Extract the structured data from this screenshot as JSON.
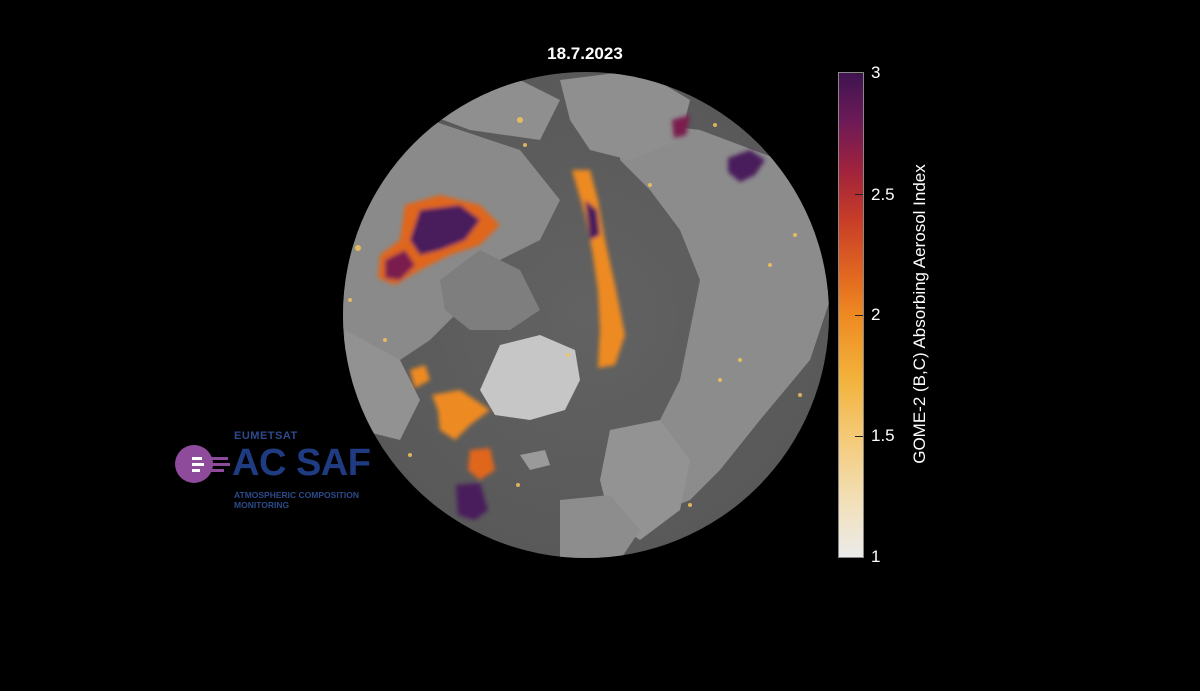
{
  "map": {
    "date_title": "18.7.2023",
    "colors": {
      "background": "#000000",
      "land": "#8c8c8c",
      "ocean": "#5f5f5f",
      "greenland_ice": "#c8c8c8",
      "aerosol_low": "#f2c35a",
      "aerosol_mid": "#e0661f",
      "aerosol_high": "#4a1a5c"
    },
    "colorbar": {
      "label": "GOME-2 (B,C) Absorbing Aerosol Index",
      "min": 1,
      "max": 3,
      "ticks": [
        "3",
        "2.5",
        "2",
        "1.5",
        "1"
      ],
      "colormap": "inferno (reversed, light to dark purple)"
    },
    "logo": {
      "organization": "EUMETSAT",
      "name": "AC SAF",
      "subtitle_line1": "ATMOSPHERIC COMPOSITION",
      "subtitle_line2": "MONITORING",
      "icon": "ac-saf-logo-icon",
      "brand_color": "#1f3b82",
      "accent_color": "#8e4b9c"
    }
  }
}
